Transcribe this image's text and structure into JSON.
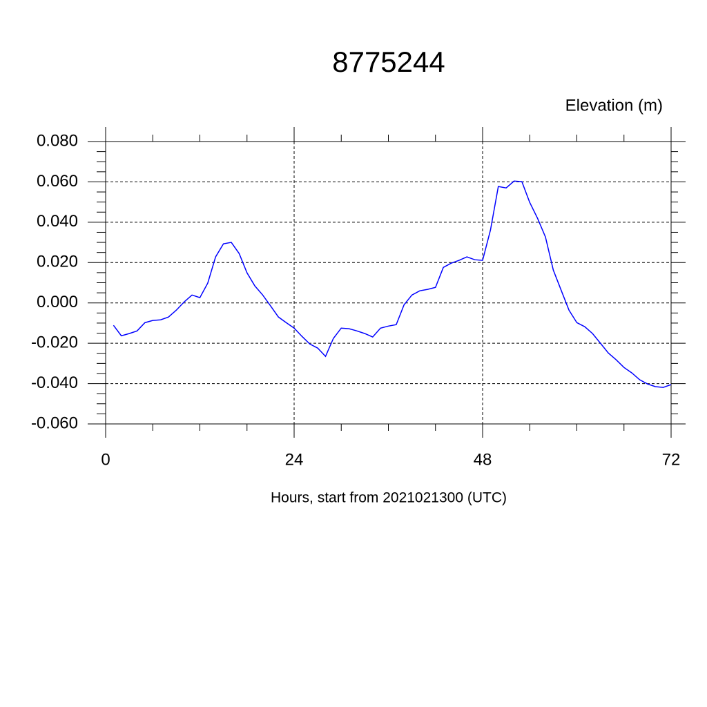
{
  "chart_data": {
    "type": "line",
    "title": "8775244",
    "subtitle": "Elevation (m)",
    "x_label": "Hours, start from 2021021300 (UTC)",
    "x": [
      1,
      2,
      3,
      4,
      5,
      6,
      7,
      8,
      9,
      10,
      11,
      12,
      13,
      14,
      15,
      16,
      17,
      18,
      19,
      20,
      21,
      22,
      23,
      24,
      25,
      26,
      27,
      28,
      29,
      30,
      31,
      32,
      33,
      34,
      35,
      36,
      37,
      38,
      39,
      40,
      41,
      42,
      43,
      44,
      45,
      46,
      47,
      48,
      49,
      50,
      51,
      52,
      53,
      54,
      55,
      56,
      57,
      58,
      59,
      60,
      61,
      62,
      63,
      64,
      65,
      66,
      67,
      68,
      69,
      70,
      71,
      72
    ],
    "series": [
      {
        "color": "#0000ff",
        "values": [
          -0.0111,
          -0.0163,
          -0.0152,
          -0.0139,
          -0.0098,
          -0.0087,
          -0.0084,
          -0.007,
          -0.0036,
          0.0005,
          0.0039,
          0.0026,
          0.0098,
          0.0228,
          0.0293,
          0.03,
          0.0245,
          0.0149,
          0.0084,
          0.0039,
          -0.0015,
          -0.007,
          -0.0098,
          -0.0125,
          -0.0166,
          -0.0204,
          -0.0224,
          -0.0265,
          -0.0176,
          -0.0125,
          -0.0128,
          -0.0139,
          -0.0152,
          -0.0169,
          -0.0125,
          -0.0115,
          -0.0108,
          -0.0009,
          0.0039,
          0.006,
          0.0067,
          0.0077,
          0.0176,
          0.0197,
          0.0211,
          0.0228,
          0.0214,
          0.0211,
          0.0361,
          0.0577,
          0.057,
          0.0604,
          0.0601,
          0.0498,
          0.0419,
          0.0327,
          0.0163,
          0.0063,
          -0.0036,
          -0.0098,
          -0.0118,
          -0.0152,
          -0.02,
          -0.0248,
          -0.0282,
          -0.032,
          -0.0347,
          -0.0381,
          -0.0402,
          -0.0415,
          -0.0419,
          -0.0405
        ]
      }
    ],
    "xlim": [
      0,
      72
    ],
    "xticks": [
      0,
      24,
      48,
      72
    ],
    "ylim": [
      -0.06,
      0.08
    ],
    "yticks": [
      {
        "value": -0.06,
        "label": "-0.060"
      },
      {
        "value": -0.04,
        "label": "-0.040"
      },
      {
        "value": -0.02,
        "label": "-0.020"
      },
      {
        "value": 0,
        "label": "0.000"
      },
      {
        "value": 0.02,
        "label": "0.020"
      },
      {
        "value": 0.04,
        "label": "0.040"
      },
      {
        "value": 0.06,
        "label": "0.060"
      },
      {
        "value": 0.08,
        "label": "0.080"
      }
    ],
    "grid": true
  }
}
